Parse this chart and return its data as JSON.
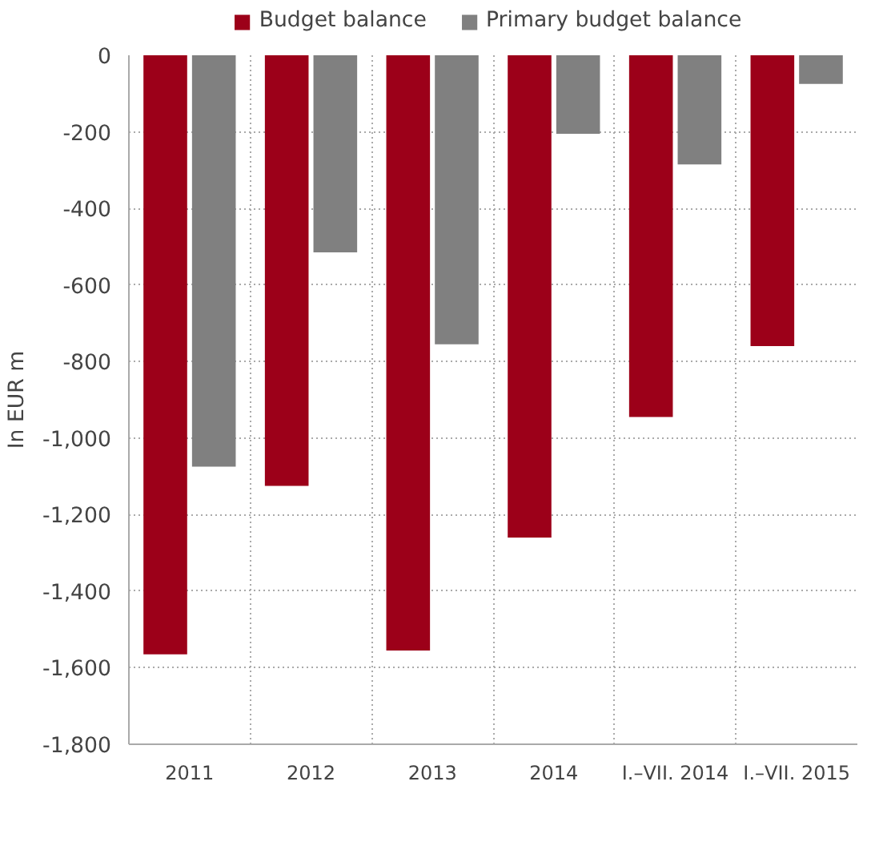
{
  "chart_data": {
    "type": "bar",
    "ylabel": "In EUR m",
    "categories": [
      "2011",
      "2012",
      "2013",
      "2014",
      "I.–VII. 2014",
      "I.–VII. 2015"
    ],
    "series": [
      {
        "name": "Budget balance",
        "color": "#9c0019",
        "values": [
          -1565,
          -1125,
          -1555,
          -1260,
          -945,
          -760
        ]
      },
      {
        "name": "Primary budget balance",
        "color": "#808080",
        "values": [
          -1075,
          -515,
          -755,
          -205,
          -285,
          -75
        ]
      }
    ],
    "ylim": [
      -1800,
      0
    ],
    "yticks": [
      {
        "value": -1800,
        "label": "-1,800"
      },
      {
        "value": -1600,
        "label": "-1,600"
      },
      {
        "value": -1400,
        "label": "-1,400"
      },
      {
        "value": -1200,
        "label": "-1,200"
      },
      {
        "value": -1000,
        "label": "-1,000"
      },
      -800,
      -600,
      -400,
      -200,
      0
    ],
    "grid": true,
    "legend": "top"
  }
}
